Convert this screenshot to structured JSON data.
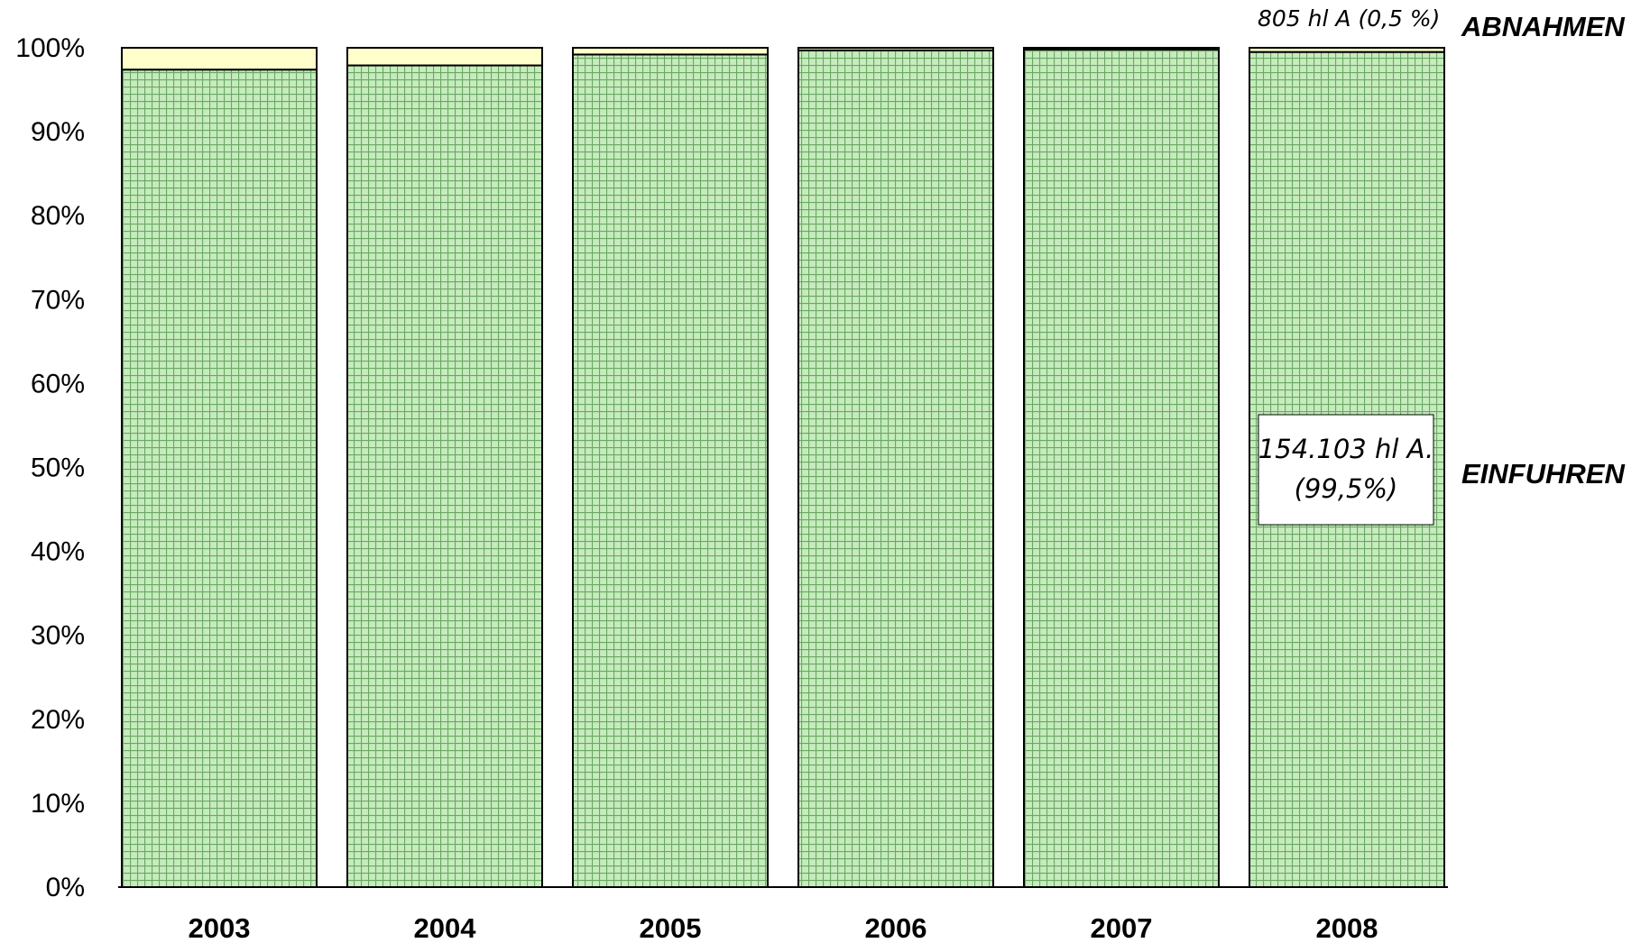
{
  "colors": {
    "einfuhren_fill": "#c6ebbd",
    "einfuhren_grid": "#6aa863",
    "abnahmen_fill": "#ffffcc",
    "outline": "#000000"
  },
  "chart_data": {
    "type": "bar",
    "stacked": true,
    "percent_axis": true,
    "categories": [
      "2003",
      "2004",
      "2005",
      "2006",
      "2007",
      "2008"
    ],
    "series": [
      {
        "name": "EINFUHREN",
        "values": [
          97.4,
          97.9,
          99.2,
          99.7,
          99.8,
          99.5
        ]
      },
      {
        "name": "ABNAHMEN",
        "values": [
          2.6,
          2.1,
          0.8,
          0.3,
          0.2,
          0.5
        ]
      }
    ],
    "ylim": [
      0,
      100
    ],
    "yticks": [
      "0%",
      "10%",
      "20%",
      "30%",
      "40%",
      "50%",
      "60%",
      "70%",
      "80%",
      "90%",
      "100%"
    ],
    "grid": false,
    "legend": "right",
    "annotations": {
      "abnahmen_2008": "805 hl A (0,5 %)",
      "einfuhren_2008_line1": "154.103 hl A.",
      "einfuhren_2008_line2": "(99,5%)"
    }
  }
}
